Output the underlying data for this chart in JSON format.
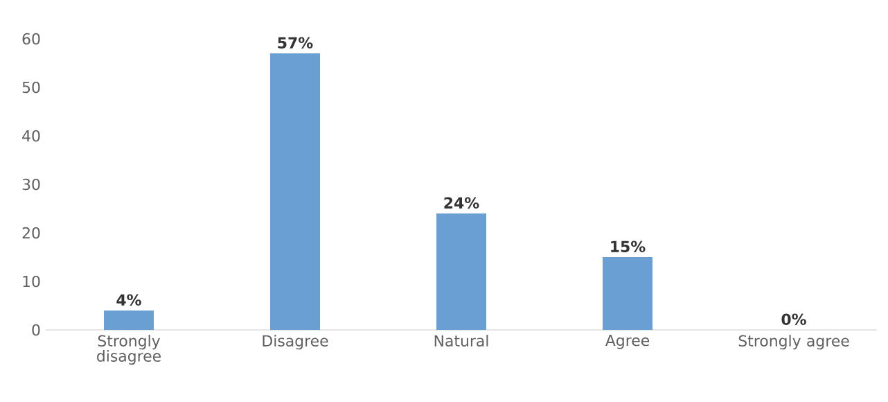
{
  "chart_data": {
    "type": "bar",
    "categories": [
      "Strongly disagree",
      "Disagree",
      "Natural",
      "Agree",
      "Strongly agree"
    ],
    "values": [
      4,
      57,
      24,
      15,
      0
    ],
    "value_labels": [
      "4%",
      "57%",
      "24%",
      "15%",
      "0%"
    ],
    "color": "#6a9fd4",
    "ylim": [
      0,
      60
    ],
    "yticks": [
      0,
      10,
      20,
      30,
      40,
      50,
      60
    ],
    "grid": false
  }
}
